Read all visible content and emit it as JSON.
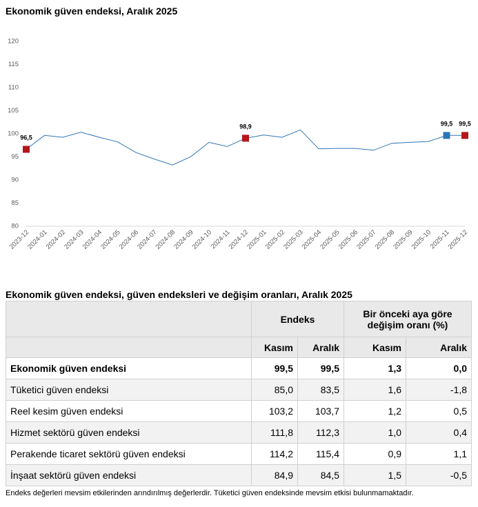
{
  "title": "Ekonomik güven endeksi, Aralık 2025",
  "chart_data": {
    "type": "line",
    "x": [
      "2023-12",
      "2024-01",
      "2024-02",
      "2024-03",
      "2024-04",
      "2024-05",
      "2024-06",
      "2024-07",
      "2024-08",
      "2024-09",
      "2024-10",
      "2024-11",
      "2024-12",
      "2025-01",
      "2025-02",
      "2025-03",
      "2025-04",
      "2025-05",
      "2025-06",
      "2025-07",
      "2025-08",
      "2025-09",
      "2025-10",
      "2025-11",
      "2025-12"
    ],
    "series": [
      {
        "name": "Ekonomik güven endeksi",
        "values": [
          96.5,
          99.5,
          99.1,
          100.2,
          99.1,
          98.1,
          95.8,
          94.4,
          93.1,
          94.9,
          98.0,
          97.1,
          98.9,
          99.6,
          99.1,
          100.7,
          96.6,
          96.7,
          96.7,
          96.3,
          97.8,
          98.0,
          98.2,
          99.5,
          99.5
        ]
      }
    ],
    "ylim": [
      80,
      120
    ],
    "yticks": [
      "80",
      "85",
      "90",
      "95",
      "100",
      "105",
      "110",
      "115",
      "120"
    ],
    "highlights": [
      {
        "index": 0,
        "label": "96,5",
        "color": "#b4161b"
      },
      {
        "index": 12,
        "label": "98,9",
        "color": "#b4161b"
      },
      {
        "index": 23,
        "label": "99,5",
        "color": "#2e75b6"
      },
      {
        "index": 24,
        "label": "99,5",
        "color": "#b4161b"
      }
    ],
    "line_color": "#2e75b6",
    "grid": false
  },
  "table": {
    "title": "Ekonomik güven endeksi, güven endeksleri ve değişim oranları, Aralık 2025",
    "group_endeks": "Endeks",
    "group_change": "Bir önceki aya göre değişim oranı (%)",
    "sub_headers": [
      "Kasım",
      "Aralık",
      "Kasım",
      "Aralık"
    ],
    "rows": [
      {
        "name": "Ekonomik güven endeksi",
        "v": [
          "99,5",
          "99,5",
          "1,3",
          "0,0"
        ]
      },
      {
        "name": "Tüketici güven endeksi",
        "v": [
          "85,0",
          "83,5",
          "1,6",
          "-1,8"
        ]
      },
      {
        "name": "Reel kesim güven endeksi",
        "v": [
          "103,2",
          "103,7",
          "1,2",
          "0,5"
        ]
      },
      {
        "name": "Hizmet sektörü güven endeksi",
        "v": [
          "111,8",
          "112,3",
          "1,0",
          "0,4"
        ]
      },
      {
        "name": "Perakende ticaret sektörü güven endeksi",
        "v": [
          "114,2",
          "115,4",
          "0,9",
          "1,1"
        ]
      },
      {
        "name": "İnşaat sektörü güven endeksi",
        "v": [
          "84,9",
          "84,5",
          "1,5",
          "-0,5"
        ]
      }
    ]
  },
  "footnote": "Endeks değerleri mevsim etkilerinden arındırılmış değerlerdir. Tüketici güven endeksinde mevsim etkisi bulunmamaktadır."
}
